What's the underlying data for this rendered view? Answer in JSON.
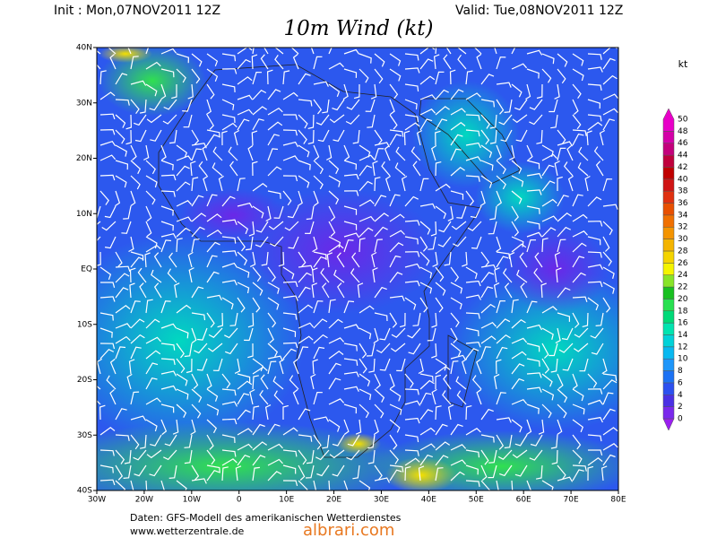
{
  "header": {
    "init": "Init : Mon,07NOV2011 12Z",
    "valid": "Valid: Tue,08NOV2011 12Z",
    "title": "10m Wind (kt)"
  },
  "map": {
    "lon_labels": [
      "30W",
      "20W",
      "10W",
      "0",
      "10E",
      "20E",
      "30E",
      "40E",
      "50E",
      "60E",
      "70E",
      "80E"
    ],
    "lat_labels": [
      "40N",
      "30N",
      "20N",
      "10N",
      "EQ",
      "10S",
      "20S",
      "30S",
      "40S"
    ]
  },
  "colorbar": {
    "unit": "kt",
    "levels": [
      0,
      2,
      4,
      6,
      8,
      10,
      12,
      14,
      16,
      18,
      20,
      22,
      24,
      26,
      28,
      30,
      32,
      34,
      36,
      38,
      40,
      42,
      44,
      46,
      48,
      50
    ],
    "colors": [
      "#9a1ef0",
      "#7a28ec",
      "#4a30e4",
      "#2c50f0",
      "#1c72f4",
      "#1e96fa",
      "#08b8f0",
      "#00d2d8",
      "#00e4b0",
      "#00da78",
      "#28e050",
      "#18c020",
      "#88e428",
      "#f4f400",
      "#f4d400",
      "#f4b400",
      "#f49400",
      "#f07000",
      "#e85000",
      "#e03010",
      "#d01414",
      "#c00000",
      "#c0003c",
      "#c4007c",
      "#d400a8",
      "#e800c8"
    ]
  },
  "footer": {
    "source": "Daten: GFS-Modell des amerikanischen Wetterdienstes",
    "site": "www.wetterzentrale.de",
    "watermark": "albrari.com"
  }
}
